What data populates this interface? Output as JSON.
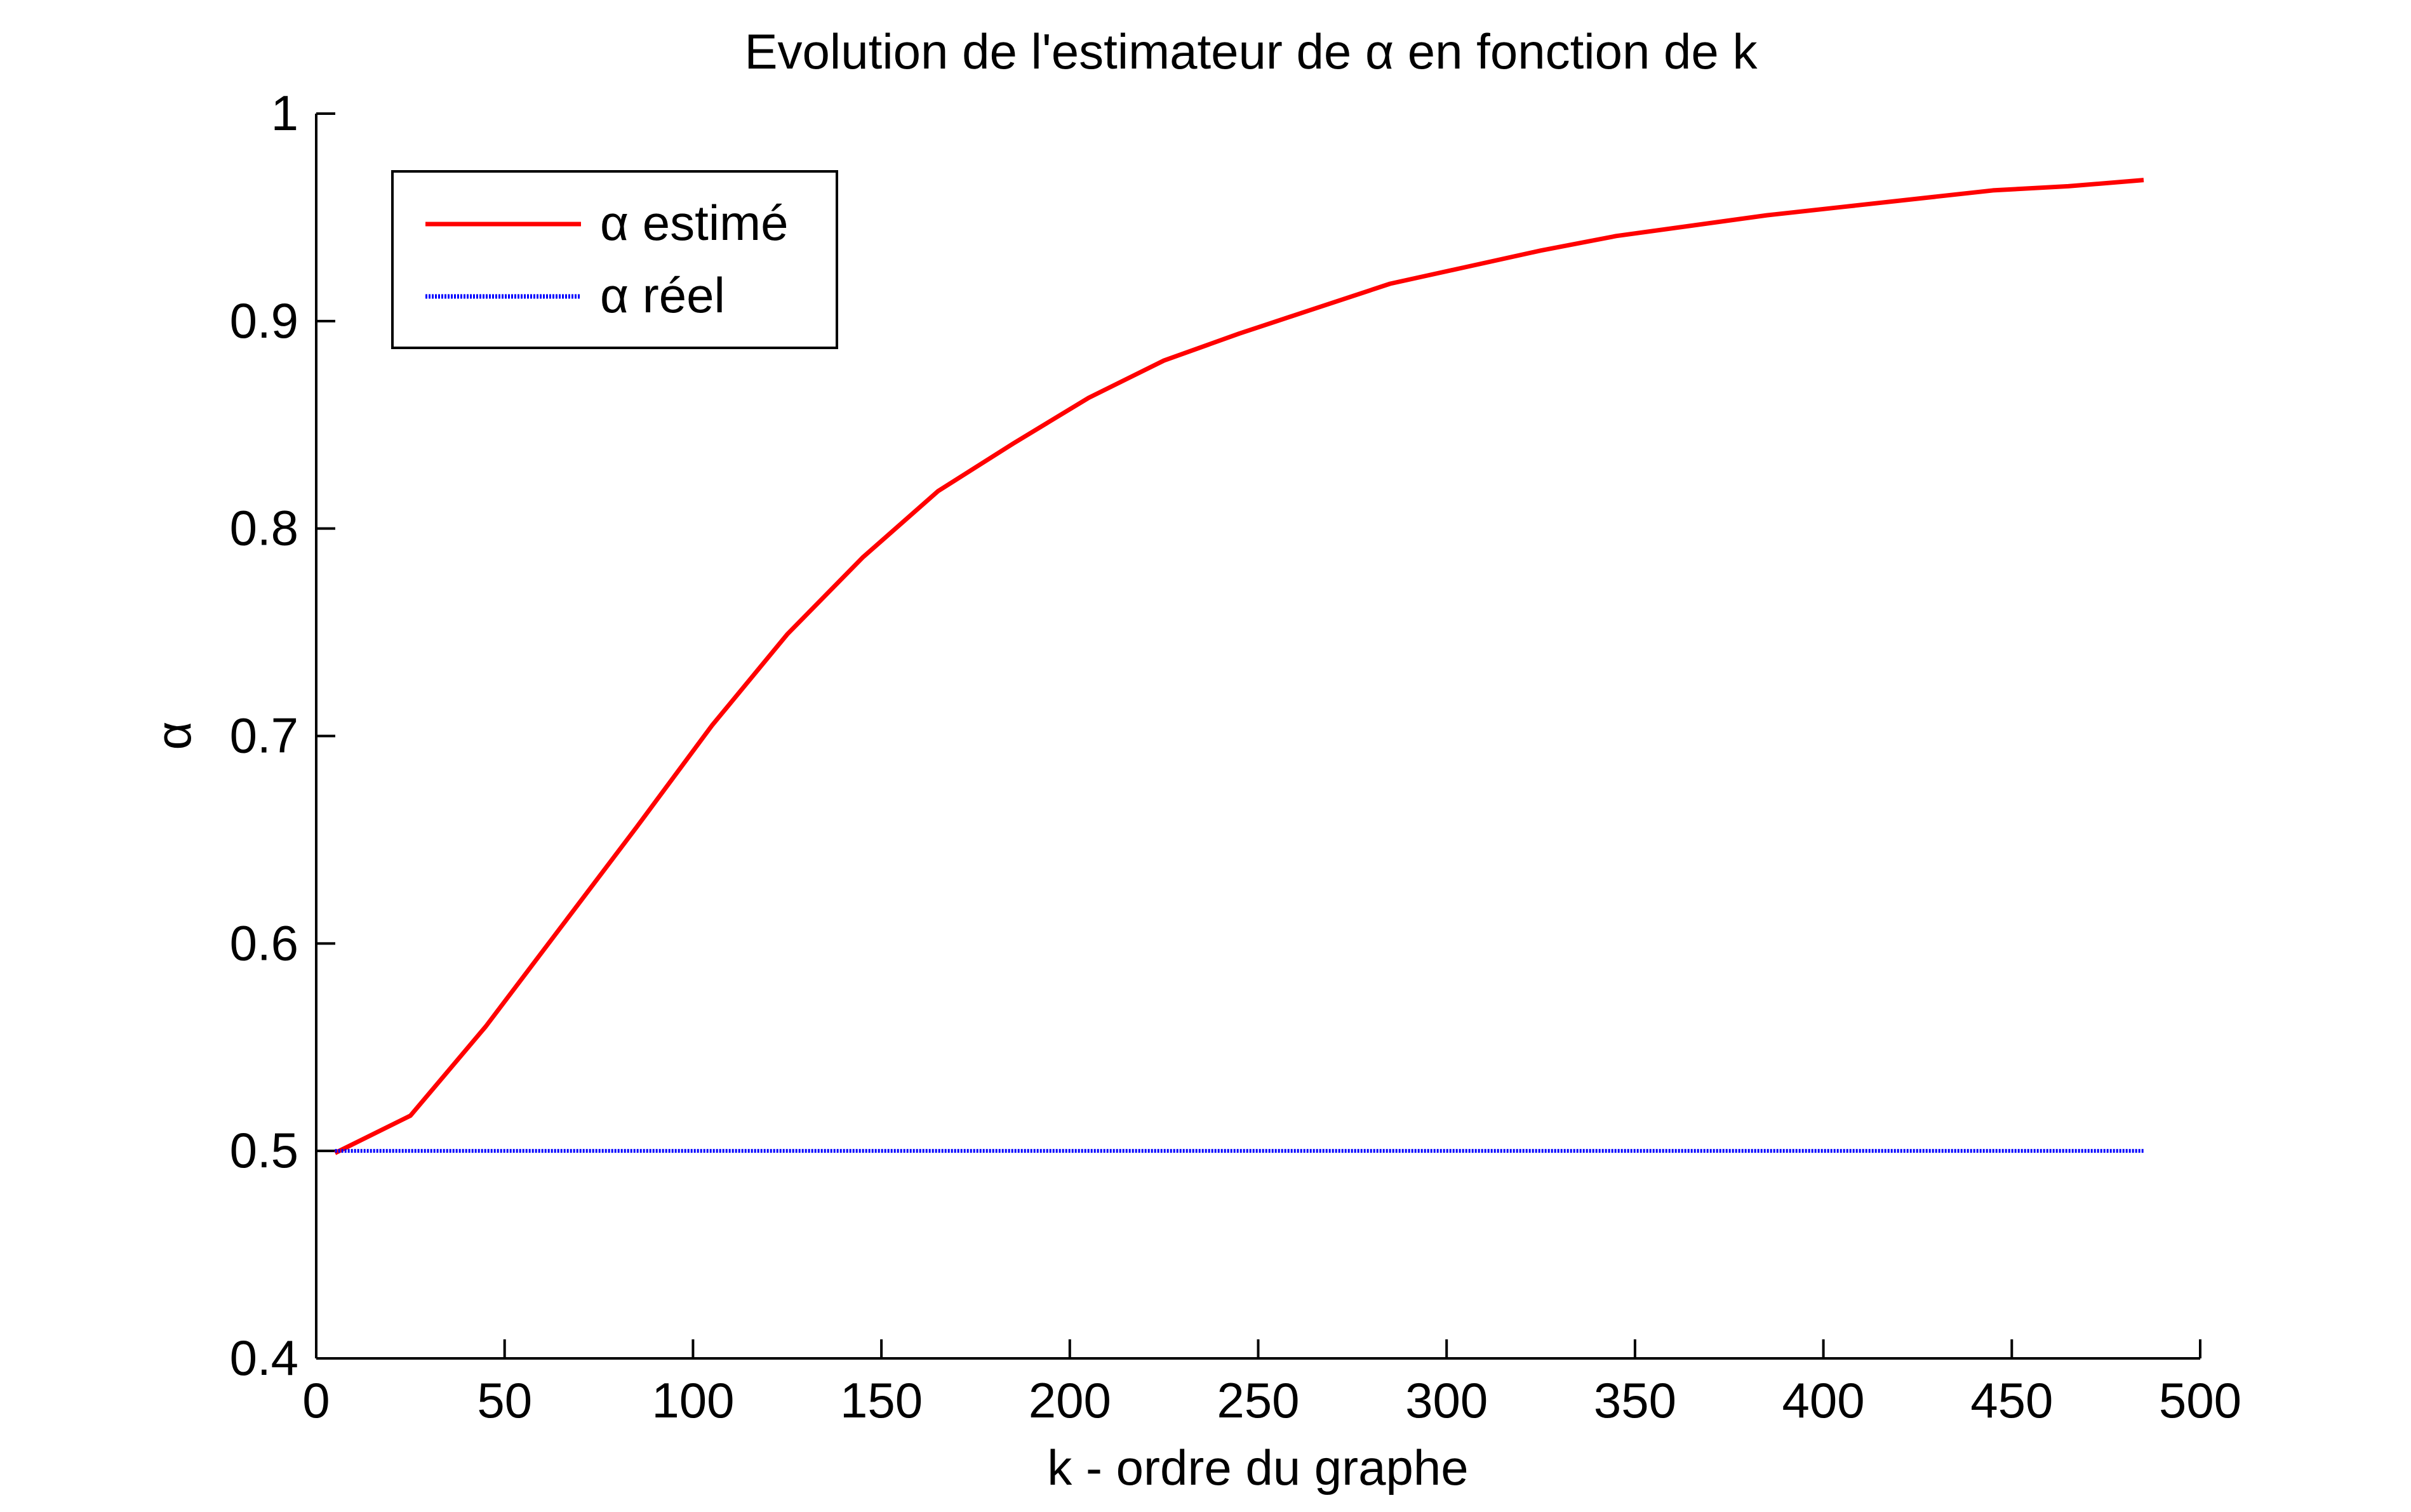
{
  "chart_data": {
    "type": "line",
    "title": "Evolution de l'estimateur de α en fonction de k",
    "xlabel": "k - ordre du graphe",
    "ylabel": "α",
    "xlim": [
      0,
      500
    ],
    "ylim": [
      0.4,
      1
    ],
    "x_ticks": [
      0,
      50,
      100,
      150,
      200,
      250,
      300,
      350,
      400,
      450,
      500
    ],
    "y_ticks": [
      0.4,
      0.5,
      0.6,
      0.7,
      0.8,
      0.9,
      1
    ],
    "x_tick_labels": [
      "0",
      "50",
      "100",
      "150",
      "200",
      "250",
      "300",
      "350",
      "400",
      "450",
      "500"
    ],
    "y_tick_labels": [
      "0.4",
      "0.5",
      "0.6",
      "0.7",
      "0.8",
      "0.9",
      "1"
    ],
    "grid": false,
    "legend_position": "top-left",
    "series": [
      {
        "name": "α estimé",
        "color": "#ff0000",
        "line_style": "solid",
        "x": [
          5,
          25,
          45,
          65,
          85,
          105,
          125,
          145,
          165,
          185,
          205,
          225,
          245,
          265,
          285,
          305,
          325,
          345,
          365,
          385,
          405,
          425,
          445,
          465,
          485
        ],
        "y": [
          0.499,
          0.517,
          0.56,
          0.608,
          0.656,
          0.705,
          0.749,
          0.786,
          0.818,
          0.841,
          0.863,
          0.881,
          0.894,
          0.906,
          0.918,
          0.926,
          0.934,
          0.941,
          0.946,
          0.951,
          0.955,
          0.959,
          0.963,
          0.965,
          0.968
        ]
      },
      {
        "name": "α réel",
        "color": "#0000ff",
        "line_style": "dotted",
        "x": [
          5,
          485
        ],
        "y": [
          0.5,
          0.5
        ]
      }
    ]
  }
}
